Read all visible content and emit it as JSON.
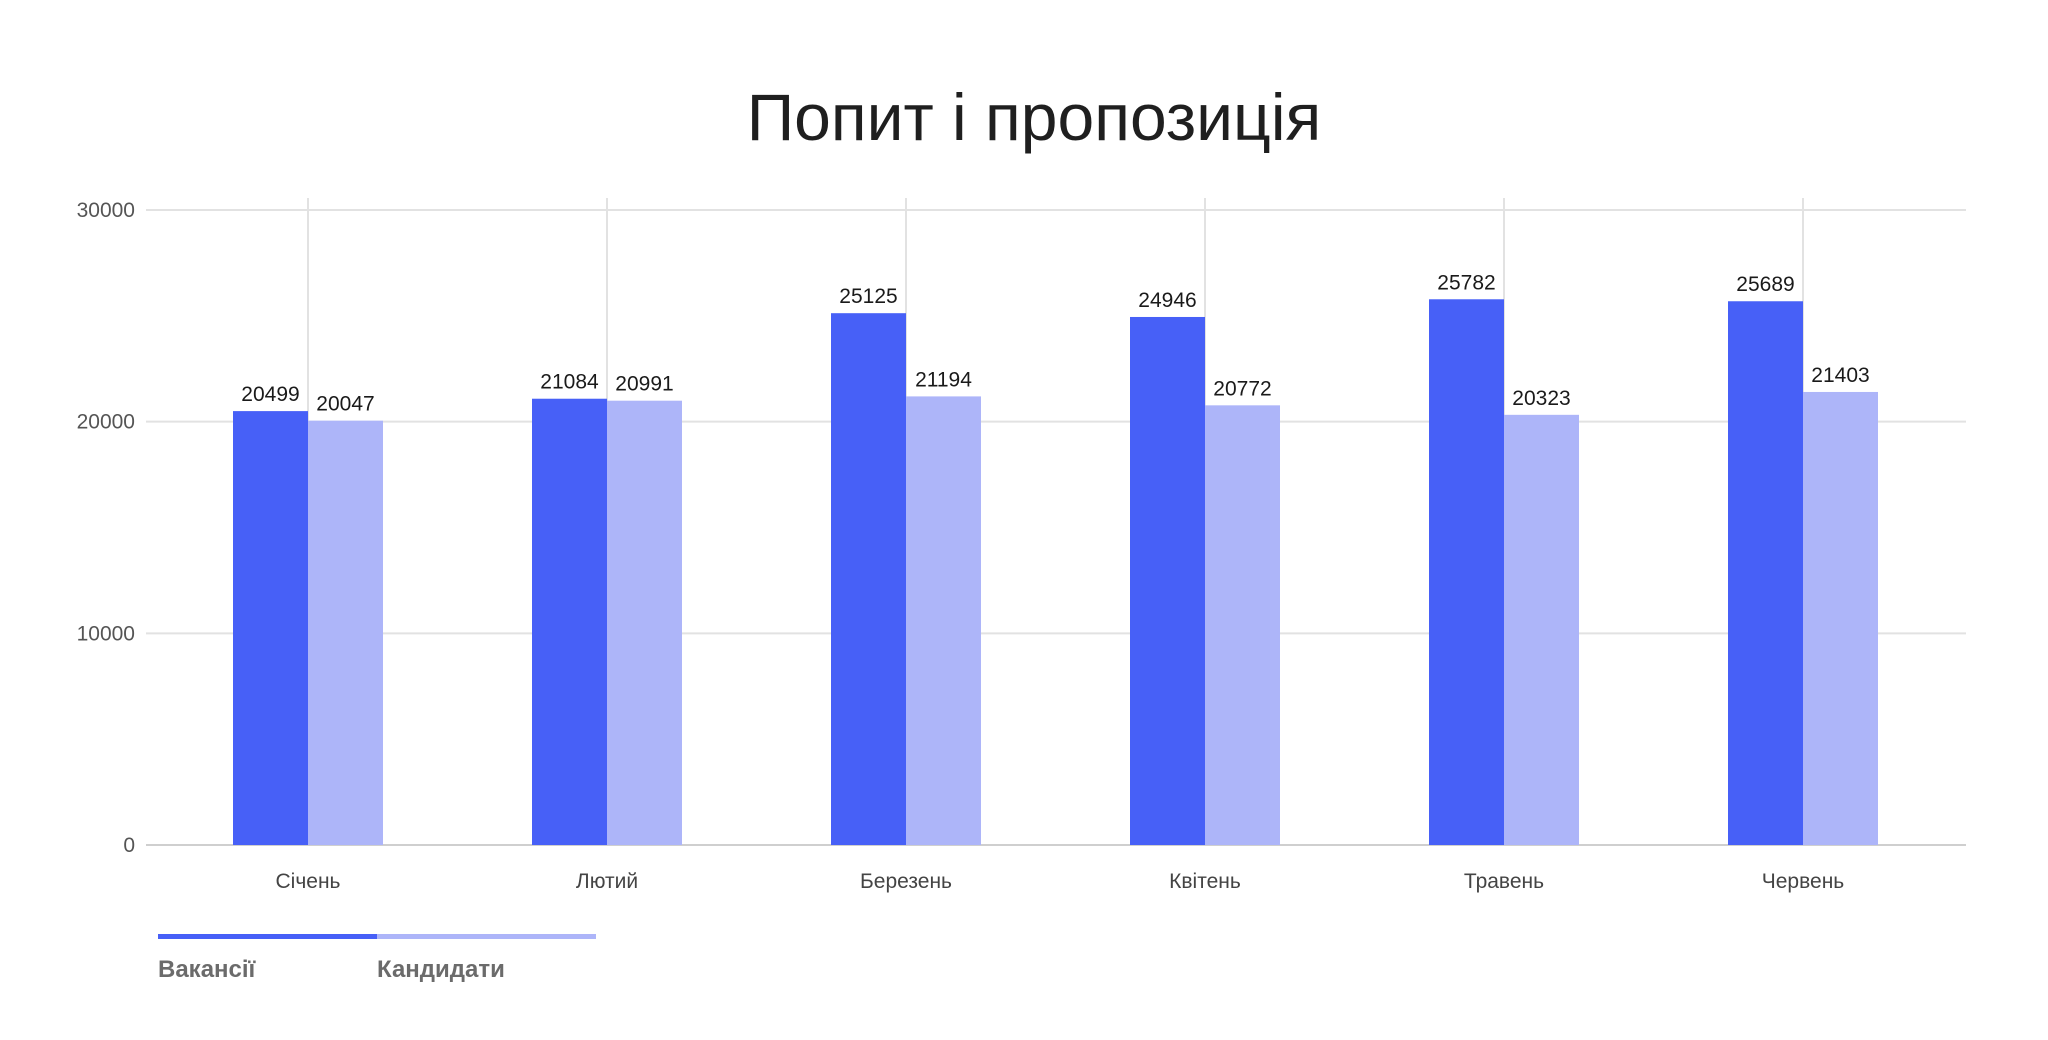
{
  "chart_data": {
    "type": "bar",
    "title": "Попит і пропозиція",
    "xlabel": "",
    "ylabel": "",
    "categories": [
      "Січень",
      "Лютий",
      "Березень",
      "Квітень",
      "Травень",
      "Червень"
    ],
    "series": [
      {
        "name": "Вакансії",
        "color": "#4760f7",
        "values": [
          20499,
          21084,
          25125,
          24946,
          25782,
          25689
        ]
      },
      {
        "name": "Кандидати",
        "color": "#adb5f9",
        "values": [
          20047,
          20991,
          21194,
          20772,
          20323,
          21403
        ]
      }
    ],
    "ylim": [
      0,
      30000
    ],
    "yticks": [
      "0",
      "10000",
      "20000",
      "30000"
    ],
    "grid": true,
    "legend_position": "bottom-left",
    "data_labels": true
  }
}
